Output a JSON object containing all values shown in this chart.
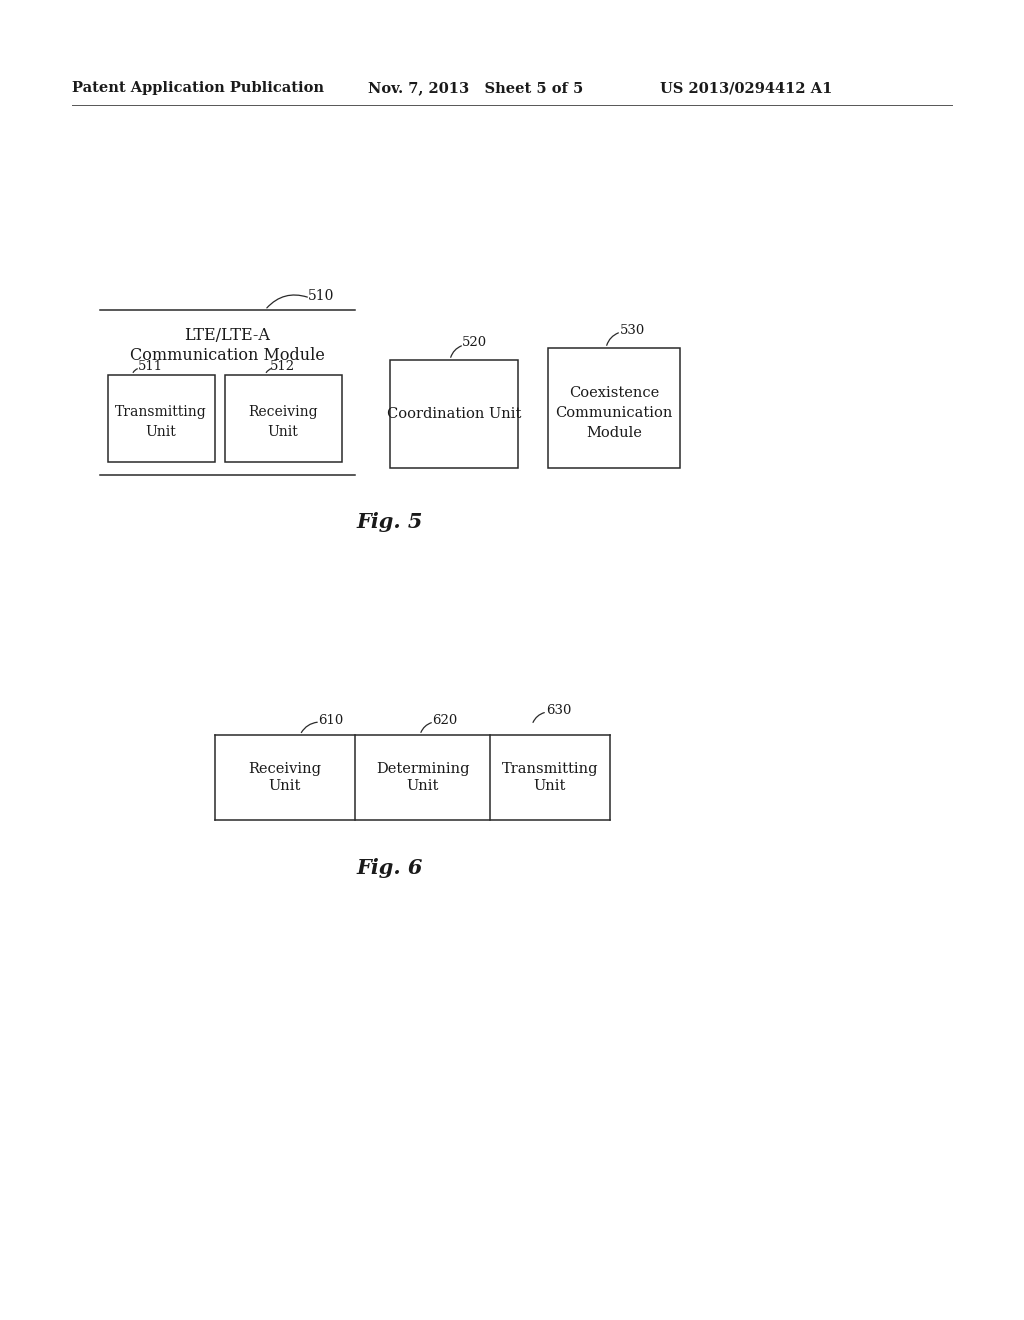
{
  "bg_color": "#ffffff",
  "text_color": "#1a1a1a",
  "header_left": "Patent Application Publication",
  "header_mid": "Nov. 7, 2013   Sheet 5 of 5",
  "header_right": "US 2013/0294412 A1",
  "fig5_label": "Fig. 5",
  "fig6_label": "Fig. 6",
  "fig5": {
    "module510_label": "510",
    "module510_title1": "LTE/LTE-A",
    "module510_title2": "Communication Module",
    "box511_label": "511",
    "box511_text1": "Transmitting",
    "box511_text2": "Unit",
    "box512_label": "512",
    "box512_text1": "Receiving",
    "box512_text2": "Unit",
    "box520_label": "520",
    "box520_text": "Coordination Unit",
    "box530_label": "530",
    "box530_text1": "Coexistence",
    "box530_text2": "Communication",
    "box530_text3": "Module"
  },
  "fig6": {
    "box610_label": "610",
    "box610_text1": "Receiving",
    "box610_text2": "Unit",
    "box620_label": "620",
    "box620_text1": "Determining",
    "box620_text2": "Unit",
    "box630_label": "630",
    "box630_text1": "Transmitting",
    "box630_text2": "Unit"
  }
}
